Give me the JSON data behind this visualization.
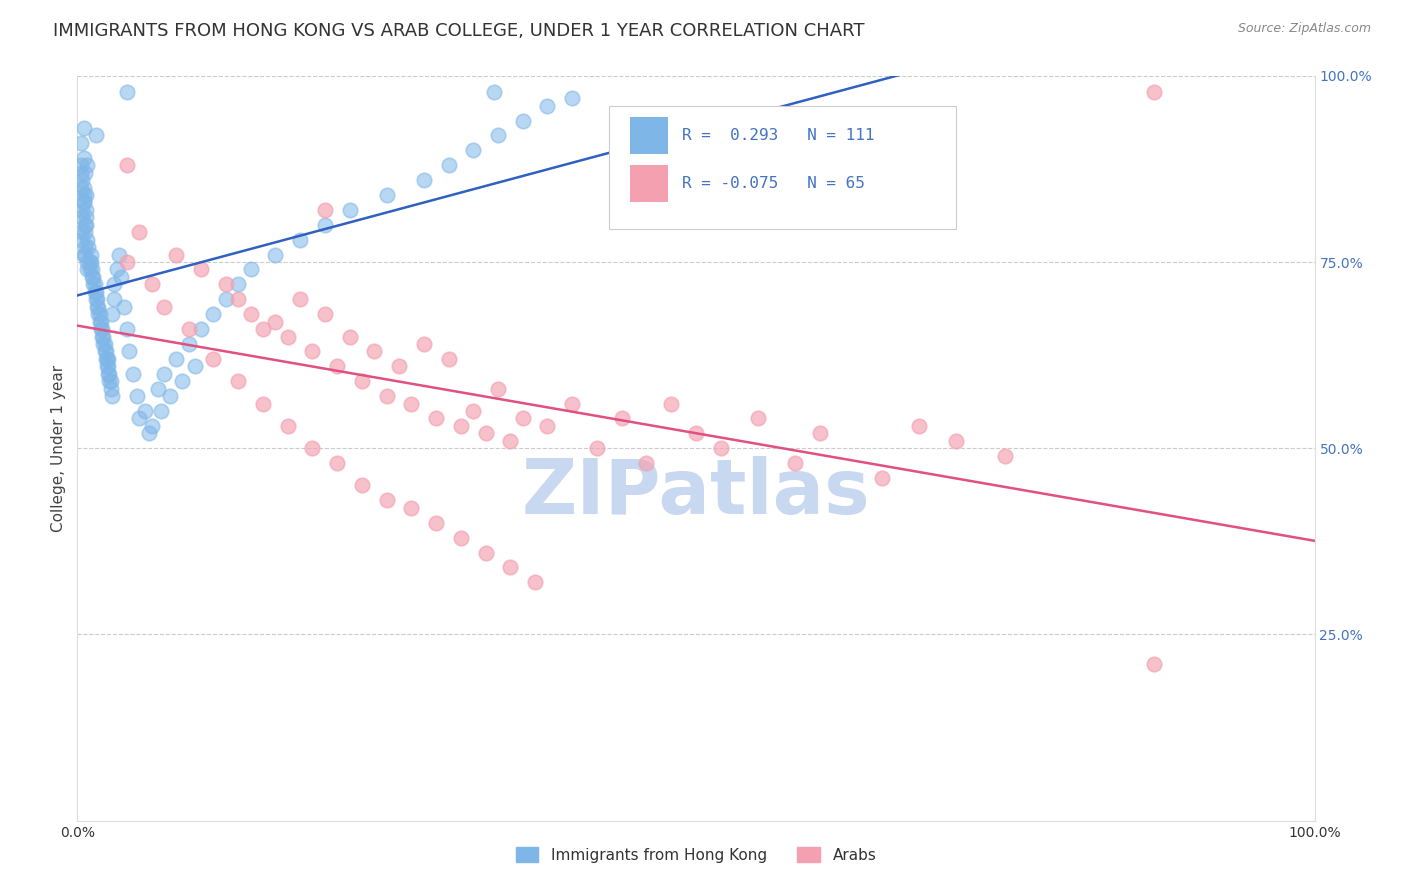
{
  "title": "IMMIGRANTS FROM HONG KONG VS ARAB COLLEGE, UNDER 1 YEAR CORRELATION CHART",
  "source": "Source: ZipAtlas.com",
  "ylabel": "College, Under 1 year",
  "ylabel_right_ticks": [
    "100.0%",
    "75.0%",
    "50.0%",
    "25.0%"
  ],
  "ylabel_right_positions": [
    1.0,
    0.75,
    0.5,
    0.25
  ],
  "xlabel_labels": [
    "0.0%",
    "",
    "",
    "",
    "",
    "100.0%"
  ],
  "xlabel_ticks": [
    0.0,
    0.2,
    0.4,
    0.6,
    0.8,
    1.0
  ],
  "legend_entry1": "R =  0.293   N = 111",
  "legend_entry2": "R = -0.075   N = 65",
  "legend_label1": "Immigrants from Hong Kong",
  "legend_label2": "Arabs",
  "hk_color": "#7EB6E8",
  "arab_color": "#F4A0B0",
  "hk_line_color": "#3060C0",
  "arab_line_color": "#E05080",
  "watermark": "ZIPatlas",
  "hk_R": 0.293,
  "hk_N": 111,
  "arab_R": -0.075,
  "arab_N": 65,
  "xlim": [
    0.0,
    1.0
  ],
  "ylim": [
    0.0,
    1.0
  ],
  "grid_color": "#CCCCCC",
  "background_color": "#FFFFFF",
  "title_fontsize": 13,
  "axis_label_fontsize": 11,
  "tick_fontsize": 10,
  "watermark_color": "#C8D8F0",
  "hk_x": [
    0.04,
    0.015,
    0.008,
    0.005,
    0.006,
    0.007,
    0.005,
    0.004,
    0.003,
    0.003,
    0.004,
    0.005,
    0.006,
    0.003,
    0.004,
    0.005,
    0.004,
    0.003,
    0.004,
    0.005,
    0.006,
    0.007,
    0.008,
    0.005,
    0.006,
    0.007,
    0.008,
    0.006,
    0.005,
    0.007,
    0.008,
    0.009,
    0.01,
    0.011,
    0.01,
    0.012,
    0.011,
    0.013,
    0.012,
    0.014,
    0.013,
    0.015,
    0.014,
    0.016,
    0.015,
    0.017,
    0.016,
    0.018,
    0.017,
    0.019,
    0.018,
    0.02,
    0.019,
    0.021,
    0.02,
    0.022,
    0.021,
    0.023,
    0.022,
    0.024,
    0.023,
    0.025,
    0.024,
    0.026,
    0.025,
    0.027,
    0.026,
    0.028,
    0.025,
    0.027,
    0.03,
    0.028,
    0.032,
    0.03,
    0.034,
    0.035,
    0.038,
    0.04,
    0.042,
    0.045,
    0.048,
    0.05,
    0.055,
    0.058,
    0.06,
    0.065,
    0.068,
    0.07,
    0.075,
    0.08,
    0.085,
    0.09,
    0.095,
    0.1,
    0.11,
    0.12,
    0.13,
    0.14,
    0.16,
    0.18,
    0.2,
    0.22,
    0.25,
    0.28,
    0.3,
    0.32,
    0.34,
    0.337,
    0.36,
    0.38,
    0.4
  ],
  "hk_y": [
    0.978,
    0.92,
    0.88,
    0.93,
    0.87,
    0.84,
    0.89,
    0.82,
    0.91,
    0.85,
    0.86,
    0.83,
    0.8,
    0.88,
    0.81,
    0.85,
    0.79,
    0.87,
    0.78,
    0.84,
    0.76,
    0.82,
    0.75,
    0.83,
    0.77,
    0.81,
    0.74,
    0.79,
    0.76,
    0.8,
    0.78,
    0.77,
    0.75,
    0.76,
    0.74,
    0.73,
    0.75,
    0.72,
    0.74,
    0.71,
    0.73,
    0.7,
    0.72,
    0.69,
    0.71,
    0.68,
    0.7,
    0.67,
    0.69,
    0.66,
    0.68,
    0.65,
    0.67,
    0.64,
    0.66,
    0.63,
    0.65,
    0.62,
    0.64,
    0.61,
    0.63,
    0.6,
    0.62,
    0.59,
    0.61,
    0.58,
    0.6,
    0.57,
    0.62,
    0.59,
    0.72,
    0.68,
    0.74,
    0.7,
    0.76,
    0.73,
    0.69,
    0.66,
    0.63,
    0.6,
    0.57,
    0.54,
    0.55,
    0.52,
    0.53,
    0.58,
    0.55,
    0.6,
    0.57,
    0.62,
    0.59,
    0.64,
    0.61,
    0.66,
    0.68,
    0.7,
    0.72,
    0.74,
    0.76,
    0.78,
    0.8,
    0.82,
    0.84,
    0.86,
    0.88,
    0.9,
    0.92,
    0.978,
    0.94,
    0.96,
    0.97
  ],
  "arab_x": [
    0.04,
    0.2,
    0.05,
    0.08,
    0.1,
    0.12,
    0.13,
    0.14,
    0.15,
    0.16,
    0.17,
    0.18,
    0.19,
    0.2,
    0.21,
    0.22,
    0.23,
    0.24,
    0.25,
    0.26,
    0.27,
    0.28,
    0.29,
    0.3,
    0.31,
    0.32,
    0.33,
    0.34,
    0.35,
    0.36,
    0.38,
    0.4,
    0.42,
    0.44,
    0.46,
    0.48,
    0.5,
    0.52,
    0.55,
    0.58,
    0.6,
    0.65,
    0.68,
    0.71,
    0.75,
    0.87,
    0.04,
    0.06,
    0.07,
    0.09,
    0.11,
    0.13,
    0.15,
    0.17,
    0.19,
    0.21,
    0.23,
    0.25,
    0.27,
    0.29,
    0.31,
    0.33,
    0.35,
    0.37,
    0.87
  ],
  "arab_y": [
    0.88,
    0.82,
    0.79,
    0.76,
    0.74,
    0.72,
    0.7,
    0.68,
    0.66,
    0.67,
    0.65,
    0.7,
    0.63,
    0.68,
    0.61,
    0.65,
    0.59,
    0.63,
    0.57,
    0.61,
    0.56,
    0.64,
    0.54,
    0.62,
    0.53,
    0.55,
    0.52,
    0.58,
    0.51,
    0.54,
    0.53,
    0.56,
    0.5,
    0.54,
    0.48,
    0.56,
    0.52,
    0.5,
    0.54,
    0.48,
    0.52,
    0.46,
    0.53,
    0.51,
    0.49,
    0.978,
    0.75,
    0.72,
    0.69,
    0.66,
    0.62,
    0.59,
    0.56,
    0.53,
    0.5,
    0.48,
    0.45,
    0.43,
    0.42,
    0.4,
    0.38,
    0.36,
    0.34,
    0.32,
    0.21
  ]
}
